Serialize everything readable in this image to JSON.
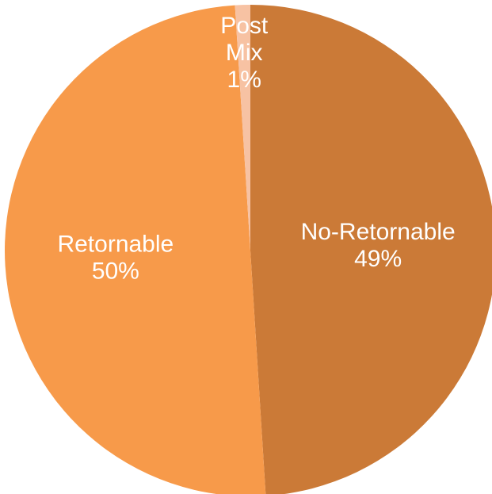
{
  "chart_data": {
    "type": "pie",
    "title": "",
    "start_angle_deg": 0,
    "direction": "clockwise",
    "slices": [
      {
        "label": "No-Retornable",
        "value": 49,
        "percent_label": "49%",
        "color": "#cb7a37"
      },
      {
        "label": "Retornable",
        "value": 50,
        "percent_label": "50%",
        "color": "#f79a4a"
      },
      {
        "label": "Post Mix",
        "value": 1,
        "percent_label": "1%",
        "color": "#f7c2a3"
      }
    ]
  }
}
